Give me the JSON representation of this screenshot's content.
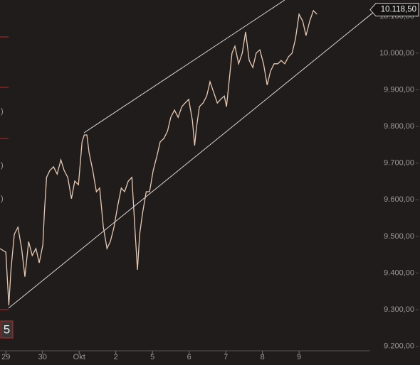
{
  "chart_data": {
    "type": "line",
    "x": [
      -0.16,
      0,
      0.08,
      0.14,
      0.23,
      0.33,
      0.43,
      0.52,
      0.62,
      0.72,
      0.82,
      0.91,
      1.01,
      1.05,
      1.11,
      1.2,
      1.3,
      1.4,
      1.5,
      1.59,
      1.69,
      1.79,
      1.88,
      1.98,
      2.08,
      2.14,
      2.21,
      2.27,
      2.37,
      2.47,
      2.56,
      2.66,
      2.76,
      2.85,
      2.95,
      3.05,
      3.15,
      3.24,
      3.34,
      3.44,
      3.53,
      3.59,
      3.65,
      3.73,
      3.83,
      3.92,
      4.02,
      4.12,
      4.21,
      4.31,
      4.41,
      4.5,
      4.6,
      4.7,
      4.8,
      4.89,
      4.99,
      5.09,
      5.15,
      5.2,
      5.28,
      5.38,
      5.48,
      5.57,
      5.67,
      5.77,
      5.86,
      5.96,
      6.02,
      6.1,
      6.17,
      6.25,
      6.35,
      6.45,
      6.54,
      6.64,
      6.74,
      6.83,
      6.93,
      7.03,
      7.13,
      7.22,
      7.32,
      7.42,
      7.51,
      7.61,
      7.71,
      7.81,
      7.9,
      8,
      8.1,
      8.19,
      8.29,
      8.39,
      8.49
    ],
    "values": [
      9467,
      9457,
      9312,
      9409,
      9506,
      9525,
      9467,
      9390,
      9486,
      9448,
      9467,
      9428,
      9477,
      9564,
      9661,
      9680,
      9690,
      9670,
      9709,
      9680,
      9661,
      9603,
      9651,
      9641,
      9758,
      9777,
      9777,
      9729,
      9680,
      9622,
      9632,
      9525,
      9467,
      9486,
      9525,
      9583,
      9632,
      9622,
      9651,
      9661,
      9506,
      9409,
      9506,
      9564,
      9622,
      9622,
      9680,
      9719,
      9758,
      9767,
      9787,
      9825,
      9845,
      9825,
      9854,
      9864,
      9874,
      9816,
      9748,
      9797,
      9854,
      9864,
      9883,
      9922,
      9893,
      9864,
      9874,
      9883,
      9854,
      9932,
      10000,
      10019,
      9971,
      10000,
      10058,
      9980,
      9961,
      10000,
      10009,
      9971,
      9913,
      9951,
      9971,
      9971,
      9980,
      9971,
      9990,
      10000,
      10038,
      10106,
      10087,
      10048,
      10087,
      10116,
      10106
    ],
    "color": "#e8c9b2",
    "xlim": [
      -0.16,
      9.94
    ],
    "ylim": [
      9188,
      10145
    ],
    "xticks": [
      {
        "value": 0,
        "label": "29"
      },
      {
        "value": 1,
        "label": "30"
      },
      {
        "value": 2,
        "label": "Okt"
      },
      {
        "value": 3,
        "label": "2"
      },
      {
        "value": 4,
        "label": "5"
      },
      {
        "value": 5,
        "label": "6"
      },
      {
        "value": 6,
        "label": "7"
      },
      {
        "value": 7,
        "label": "8"
      },
      {
        "value": 8,
        "label": "9"
      }
    ],
    "yticks": [
      {
        "value": 9200,
        "label": "9.200,00"
      },
      {
        "value": 9300,
        "label": "9.300,00"
      },
      {
        "value": 9400,
        "label": "9.400,00"
      },
      {
        "value": 9500,
        "label": "9.500,00"
      },
      {
        "value": 9600,
        "label": "9.600,00"
      },
      {
        "value": 9700,
        "label": "9.700,00"
      },
      {
        "value": 9800,
        "label": "9.800,00"
      },
      {
        "value": 9900,
        "label": "9.900,00"
      },
      {
        "value": 10000,
        "label": "10.000,00"
      },
      {
        "value": 10100,
        "label": "10.100,00"
      }
    ],
    "price_label": {
      "value": 10118.5,
      "label": "10.118,50"
    },
    "left_badge": "5",
    "left_fragments": [
      ")",
      ")",
      ")"
    ]
  }
}
